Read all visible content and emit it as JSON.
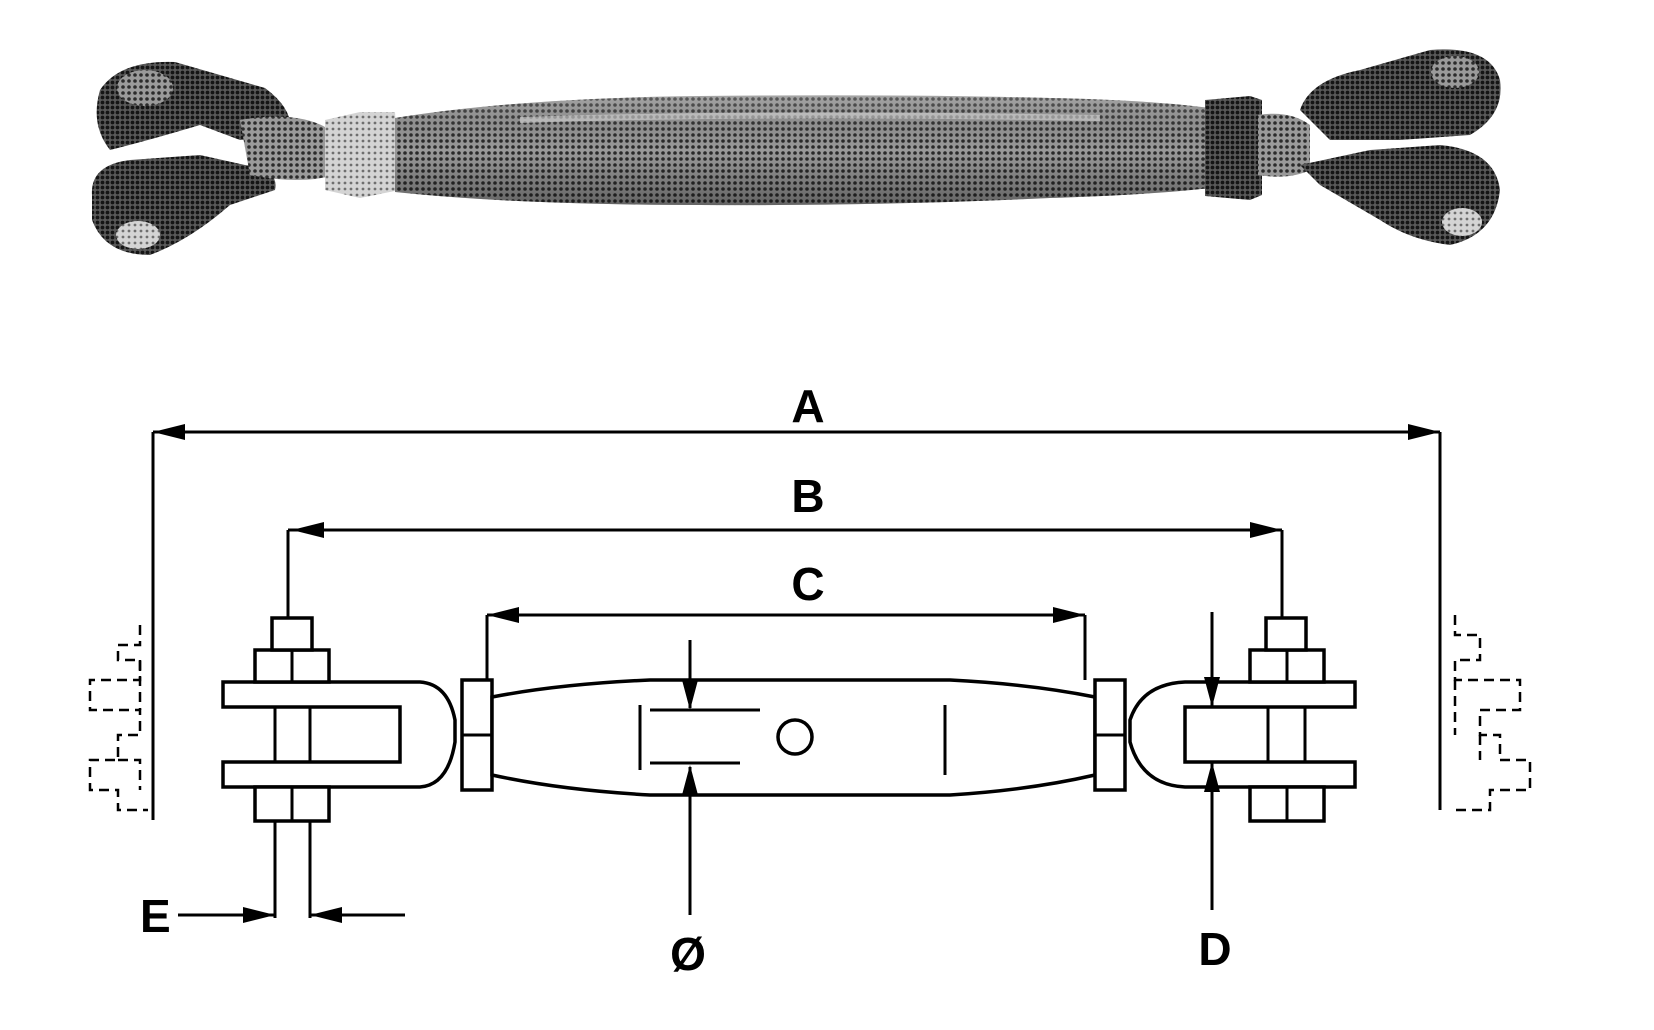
{
  "labels": {
    "a": "A",
    "b": "B",
    "c": "C",
    "d": "D",
    "e": "E",
    "diameter": "Ø"
  },
  "colors": {
    "ink": "#000000",
    "paper": "#ffffff",
    "photo_dark": "#2b2b2b",
    "photo_mid": "#6f6f6f",
    "photo_light": "#bdbdbd"
  }
}
